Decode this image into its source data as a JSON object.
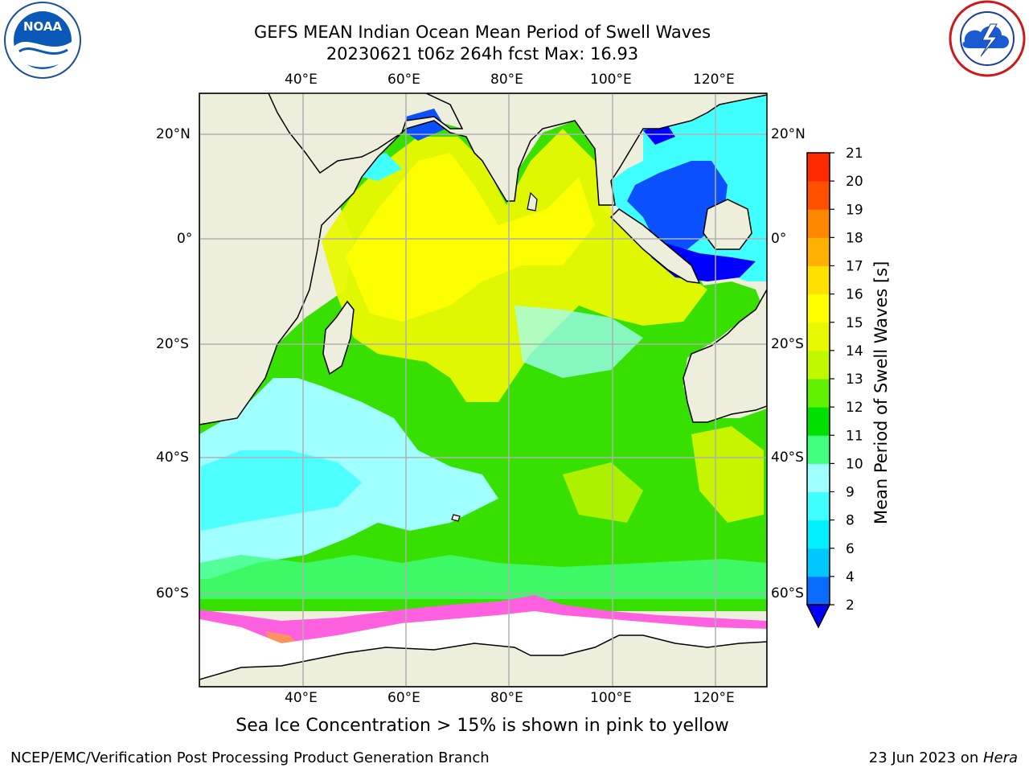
{
  "header": {
    "title_line1": "GEFS MEAN Indian Ocean Mean Period of Swell Waves",
    "title_line2": "20230621 t06z 264h fcst   Max: 16.93"
  },
  "logos": {
    "left": {
      "text": "NOAA",
      "ring_text": "NATIONAL OCEANIC AND ATMOSPHERIC ADMINISTRATION · U.S. DEPARTMENT OF COMMERCE"
    },
    "right": {
      "ring_text": "NATIONAL WEATHER SERVICE"
    }
  },
  "map": {
    "lon_labels": [
      "40°E",
      "60°E",
      "80°E",
      "100°E",
      "120°E"
    ],
    "lat_labels": [
      "20°N",
      "0°",
      "20°S",
      "40°S",
      "60°S"
    ]
  },
  "colorbar": {
    "label": "Mean Period of Swell Waves [s]",
    "ticks": [
      "2",
      "4",
      "6",
      "8",
      "9",
      "10",
      "11",
      "12",
      "13",
      "14",
      "15",
      "16",
      "17",
      "18",
      "19",
      "20",
      "21"
    ],
    "colors": [
      "#0a6cff",
      "#00c8ff",
      "#00f0ff",
      "#40ffff",
      "#a0ffff",
      "#40ff80",
      "#00e000",
      "#60f000",
      "#c0f800",
      "#e8f800",
      "#ffff00",
      "#ffe000",
      "#ffb000",
      "#ff8800",
      "#ff5000",
      "#ff2a00",
      "#ff0000"
    ],
    "extend_color": "#0000ff"
  },
  "caption": "Sea Ice Concentration > 15% is shown in pink to yellow",
  "footer": {
    "left": "NCEP/EMC/Verification Post Processing Product Generation Branch",
    "right_prefix": "23 Jun 2023 on ",
    "right_host": "Hera"
  }
}
